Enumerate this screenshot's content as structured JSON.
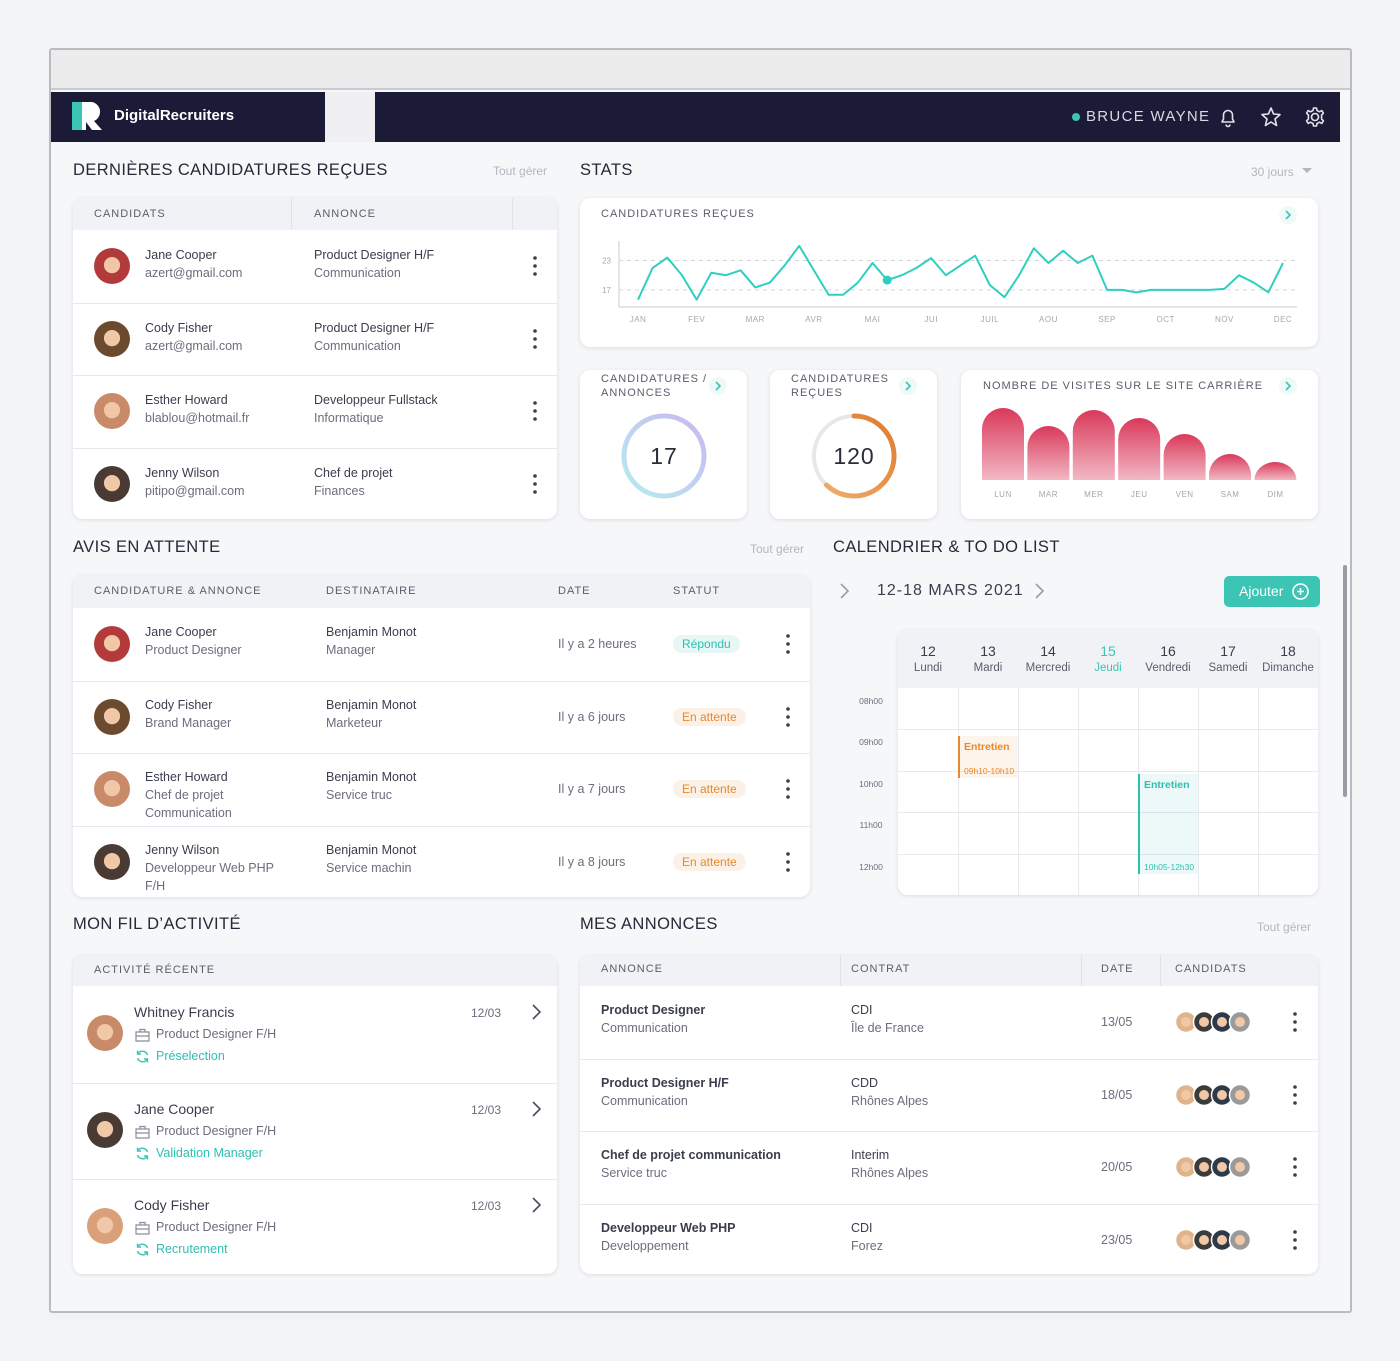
{
  "header": {
    "brand": "DigitalRecruiters",
    "user": "BRUCE WAYNE"
  },
  "candidatures": {
    "title": "DERNIÈRES CANDIDATURES REÇUES",
    "action": "Tout gérer",
    "columns": [
      "CANDIDATS",
      "ANNONCE"
    ],
    "rows": [
      {
        "name": "Jane Cooper",
        "email": "azert@gmail.com",
        "job": "Product Designer H/F",
        "dept": "Communication"
      },
      {
        "name": "Cody Fisher",
        "email": "azert@gmail.com",
        "job": "Product Designer H/F",
        "dept": "Communication"
      },
      {
        "name": "Esther Howard",
        "email": "blablou@hotmail.fr",
        "job": "Developpeur Fullstack",
        "dept": "Informatique"
      },
      {
        "name": "Jenny Wilson",
        "email": "pitipo@gmail.com",
        "job": "Chef de projet",
        "dept": "Finances"
      }
    ]
  },
  "stats": {
    "title": "STATS",
    "period": "30 jours",
    "line_chart": {
      "type": "line",
      "title": "CANDIDATURES REÇUES",
      "color": "#2fcfc0",
      "x": [
        0,
        0.25,
        0.5,
        0.75,
        1,
        1.25,
        1.5,
        1.75,
        2,
        2.25,
        2.5,
        2.75,
        3,
        3.25,
        3.5,
        3.75,
        4,
        4.25,
        4.5,
        4.75,
        5,
        5.25,
        5.5,
        5.75,
        6,
        6.25,
        6.5,
        6.75,
        7,
        7.25,
        7.5,
        7.75,
        8,
        8.25,
        8.5,
        8.75,
        9,
        9.25,
        9.5,
        9.75,
        10,
        10.25,
        10.5,
        10.75,
        11
      ],
      "values": [
        15,
        21.5,
        23.6,
        20,
        15,
        20.5,
        20,
        21,
        17.5,
        18.5,
        22,
        26,
        21,
        16,
        16,
        18.5,
        22.5,
        19,
        20,
        21.5,
        23.5,
        20,
        22,
        24,
        18,
        15.5,
        20,
        25.5,
        22.5,
        25,
        22.5,
        24,
        17,
        17,
        16.5,
        17,
        17,
        17,
        17,
        17,
        17.2,
        20,
        18.5,
        16.5,
        22.5
      ],
      "highlight_index": 17,
      "xlim": [
        0,
        11
      ],
      "ylim": [
        13.5,
        27
      ],
      "yticks": [
        17,
        23
      ],
      "grid": true,
      "xticks": [
        {
          "value": 0,
          "label": "JAN"
        },
        {
          "value": 1,
          "label": "FEV"
        },
        {
          "value": 2,
          "label": "MAR"
        },
        {
          "value": 3,
          "label": "AVR"
        },
        {
          "value": 4,
          "label": "MAI"
        },
        {
          "value": 5,
          "label": "JUI"
        },
        {
          "value": 6,
          "label": "JUIL"
        },
        {
          "value": 7,
          "label": "AOU"
        },
        {
          "value": 8,
          "label": "SEP"
        },
        {
          "value": 9,
          "label": "OCT"
        },
        {
          "value": 10,
          "label": "NOV"
        },
        {
          "value": 11,
          "label": "DEC"
        }
      ]
    },
    "kpis": [
      {
        "title": "CANDIDATURES / ANNONCES",
        "value": 17
      },
      {
        "title": "CANDIDATURES REÇUES",
        "value": 120
      }
    ],
    "visits_chart": {
      "type": "bar",
      "title": "NOMBRE DE VISITES SUR LE SITE CARRIÈRE",
      "categories": [
        "LUN",
        "MAR",
        "MER",
        "JEU",
        "VEN",
        "SAM",
        "DIM"
      ],
      "values": [
        72,
        54,
        70,
        62,
        46,
        26,
        18
      ],
      "ylim": [
        0,
        80
      ],
      "color": "#d9395a"
    }
  },
  "avis": {
    "title": "AVIS EN ATTENTE",
    "action": "Tout gérer",
    "columns": [
      "CANDIDATURE & ANNONCE",
      "DESTINATAIRE",
      "DATE",
      "STATUT"
    ],
    "rows": [
      {
        "name": "Jane Cooper",
        "details": [
          "Product Designer"
        ],
        "recipient": "Benjamin Monot",
        "recipient_role": "Manager",
        "date": "Il y a 2 heures",
        "status": "Répondu",
        "status_color": "#2fbfb0"
      },
      {
        "name": "Cody Fisher",
        "details": [
          "Brand Manager"
        ],
        "recipient": "Benjamin Monot",
        "recipient_role": "Marketeur",
        "date": "Il y a 6 jours",
        "status": "En attente",
        "status_color": "#e8892e"
      },
      {
        "name": "Esther Howard",
        "details": [
          "Chef de projet",
          "Communication"
        ],
        "recipient": "Benjamin Monot",
        "recipient_role": "Service truc",
        "date": "Il y a 7 jours",
        "status": "En attente",
        "status_color": "#e8892e"
      },
      {
        "name": "Jenny Wilson",
        "details": [
          "Developpeur Web PHP",
          "F/H"
        ],
        "recipient": "Benjamin Monot",
        "recipient_role": "Service machin",
        "date": "Il y a 8 jours",
        "status": "En attente",
        "status_color": "#e8892e"
      }
    ]
  },
  "calendar": {
    "title": "CALENDRIER & TO DO LIST",
    "range": "12-18 MARS 2021",
    "add": "Ajouter",
    "highlight_day": 3,
    "days": [
      {
        "num": "12",
        "name": "Lundi"
      },
      {
        "num": "13",
        "name": "Mardi"
      },
      {
        "num": "14",
        "name": "Mercredi"
      },
      {
        "num": "15",
        "name": "Jeudi"
      },
      {
        "num": "16",
        "name": "Vendredi"
      },
      {
        "num": "17",
        "name": "Samedi"
      },
      {
        "num": "18",
        "name": "Dimanche"
      }
    ],
    "hours": [
      "08h00",
      "09h00",
      "10h00",
      "11h00",
      "12h00"
    ],
    "events": [
      {
        "label": "Entretien",
        "time": "09h10-10h10",
        "day": 1,
        "color": "#e8892e"
      },
      {
        "label": "Entretien",
        "time": "10h05-12h30",
        "day": 4,
        "color": "#2fbfb0"
      }
    ]
  },
  "activity": {
    "title": "MON FIL D’ACTIVITÉ",
    "column": "ACTIVITÉ RÉCENTE",
    "items": [
      {
        "name": "Whitney Francis",
        "date": "12/03",
        "job": "Product Designer F/H",
        "status": "Préselection"
      },
      {
        "name": "Jane Cooper",
        "date": "12/03",
        "job": "Product Designer F/H",
        "status": "Validation Manager"
      },
      {
        "name": "Cody Fisher",
        "date": "12/03",
        "job": "Product Designer F/H",
        "status": "Recrutement"
      }
    ]
  },
  "annonces": {
    "title": "MES ANNONCES",
    "action": "Tout gérer",
    "columns": [
      "ANNONCE",
      "CONTRAT",
      "DATE",
      "CANDIDATS"
    ],
    "rows": [
      {
        "title": "Product Designer",
        "dept": "Communication",
        "contract": "CDI",
        "location": "Île de France",
        "date": "13/05"
      },
      {
        "title": "Product Designer H/F",
        "dept": "Communication",
        "contract": "CDD",
        "location": "Rhônes Alpes",
        "date": "18/05"
      },
      {
        "title": "Chef de projet communication",
        "dept": "Service truc",
        "contract": "Interim",
        "location": "Rhônes Alpes",
        "date": "20/05"
      },
      {
        "title": "Developpeur Web PHP",
        "dept": "Developpement",
        "contract": "CDI",
        "location": "Forez",
        "date": "23/05"
      }
    ]
  }
}
